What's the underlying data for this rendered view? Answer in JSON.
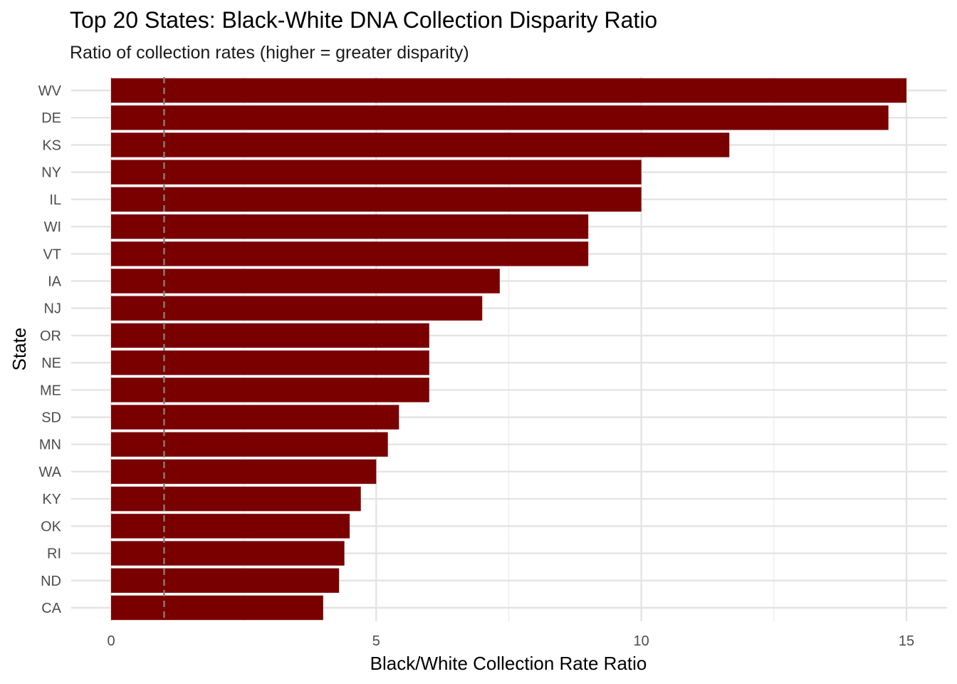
{
  "title": "Top 20 States: Black-White DNA Collection Disparity Ratio",
  "subtitle": "Ratio of collection rates (higher = greater disparity)",
  "chart_data": {
    "type": "bar",
    "orientation": "horizontal",
    "title": "Top 20 States: Black-White DNA Collection Disparity Ratio",
    "subtitle": "Ratio of collection rates (higher = greater disparity)",
    "xlabel": "Black/White Collection Rate Ratio",
    "ylabel": "State",
    "xlim": [
      0,
      15
    ],
    "x_ticks": [
      0,
      5,
      10,
      15
    ],
    "reference_line": {
      "value": 1,
      "style": "dashed",
      "color": "#808080"
    },
    "bar_color": "#7a0000",
    "grid": true,
    "categories": [
      "WV",
      "DE",
      "KS",
      "NY",
      "IL",
      "WI",
      "VT",
      "IA",
      "NJ",
      "OR",
      "NE",
      "ME",
      "SD",
      "MN",
      "WA",
      "KY",
      "OK",
      "RI",
      "ND",
      "CA"
    ],
    "values": [
      15.0,
      14.66,
      11.66,
      10.0,
      10.0,
      9.0,
      9.0,
      7.33,
      7.0,
      6.0,
      6.0,
      6.0,
      5.43,
      5.22,
      5.0,
      4.71,
      4.5,
      4.4,
      4.3,
      4.0
    ]
  }
}
